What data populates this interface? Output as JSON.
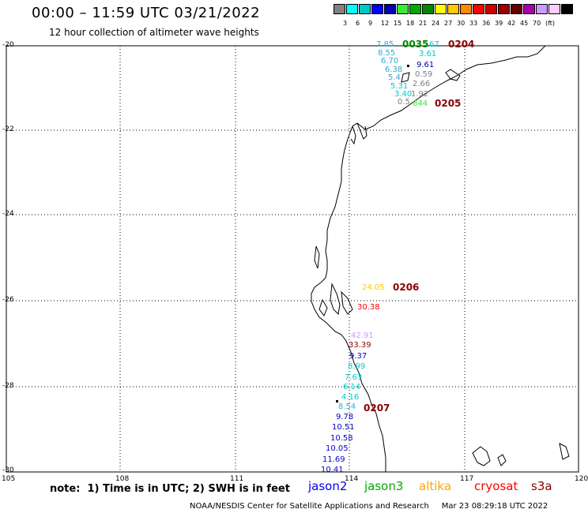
{
  "title": "00:00 – 11:59 UTC 03/21/2022",
  "subtitle": "12 hour collection of altimeter wave heights",
  "legend": {
    "swatches": [
      "#808080",
      "#00ffff",
      "#00c8c8",
      "#0000ff",
      "#0000aa",
      "#33ee33",
      "#00aa00",
      "#008800",
      "#ffff00",
      "#ffc800",
      "#ff8800",
      "#ff0000",
      "#cc0000",
      "#990000",
      "#660000",
      "#aa00aa",
      "#cc99ff",
      "#ffccff",
      "#000000"
    ],
    "labels": [
      "3",
      "6",
      "9",
      "12",
      "15",
      "18",
      "21",
      "24",
      "27",
      "30",
      "33",
      "36",
      "39",
      "42",
      "45",
      "70",
      "(ft)"
    ]
  },
  "axes": {
    "lat_labels": [
      "-20",
      "-22",
      "-24",
      "-26",
      "-28",
      "-30"
    ],
    "lon_labels": [
      "105",
      "108",
      "111",
      "114",
      "117",
      "120"
    ]
  },
  "observations": [
    {
      "text": "7.85",
      "color": "#33aacc"
    },
    {
      "text": "0035",
      "color": "#008800",
      "pass": true
    },
    {
      "text": "67",
      "color": "#00cccc"
    },
    {
      "text": "0204",
      "color": "#880000",
      "pass": true
    },
    {
      "text": "8.55",
      "color": "#33aacc"
    },
    {
      "text": "3.61",
      "color": "#00cccc"
    },
    {
      "text": "6.70",
      "color": "#33aacc"
    },
    {
      "text": "9.61",
      "color": "#0000aa"
    },
    {
      "text": "6.38",
      "color": "#33aacc"
    },
    {
      "text": "0.59",
      "color": "#808080"
    },
    {
      "text": "5.4",
      "color": "#33aacc"
    },
    {
      "text": "2.66",
      "color": "#808080"
    },
    {
      "text": "5.31",
      "color": "#00cccc"
    },
    {
      "text": "3.40",
      "color": "#00cccc"
    },
    {
      "text": "1.92",
      "color": "#808080"
    },
    {
      "text": "0.5",
      "color": "#808080"
    },
    {
      "text": "844",
      "color": "#33ee33"
    },
    {
      "text": "0205",
      "color": "#880000",
      "pass": true
    },
    {
      "text": "24.05",
      "color": "#ffc800"
    },
    {
      "text": "0206",
      "color": "#880000",
      "pass": true
    },
    {
      "text": "30.38",
      "color": "#ff0000"
    },
    {
      "text": "42.91",
      "color": "#cc99ff"
    },
    {
      "text": "33.39",
      "color": "#990000"
    },
    {
      "text": "9.37",
      "color": "#0000cc"
    },
    {
      "text": "8.99",
      "color": "#00cccc"
    },
    {
      "text": "7.63",
      "color": "#00cccc"
    },
    {
      "text": "6.14",
      "color": "#00cccc"
    },
    {
      "text": "4.16",
      "color": "#00cccc"
    },
    {
      "text": "8.54",
      "color": "#33aacc"
    },
    {
      "text": "0207",
      "color": "#880000",
      "pass": true
    },
    {
      "text": "9.78",
      "color": "#0000cc"
    },
    {
      "text": "10.51",
      "color": "#0000cc"
    },
    {
      "text": "10.58",
      "color": "#0000cc"
    },
    {
      "text": "10.05",
      "color": "#0000cc"
    },
    {
      "text": "11.69",
      "color": "#0000cc"
    },
    {
      "text": "10.41",
      "color": "#0000cc"
    }
  ],
  "footer": {
    "note": "note:  1) Time is in UTC; 2) SWH is in feet",
    "satellites": [
      {
        "name": "jason2",
        "color": "#0000ee"
      },
      {
        "name": "jason3",
        "color": "#00aa00"
      },
      {
        "name": "altika",
        "color": "#ffa500"
      },
      {
        "name": "cryosat",
        "color": "#ff0000"
      },
      {
        "name": "s3a",
        "color": "#880000"
      }
    ],
    "credit": "NOAA/NESDIS Center for Satellite Applications and Research     Mar 23 08:29:18 UTC 2022"
  }
}
